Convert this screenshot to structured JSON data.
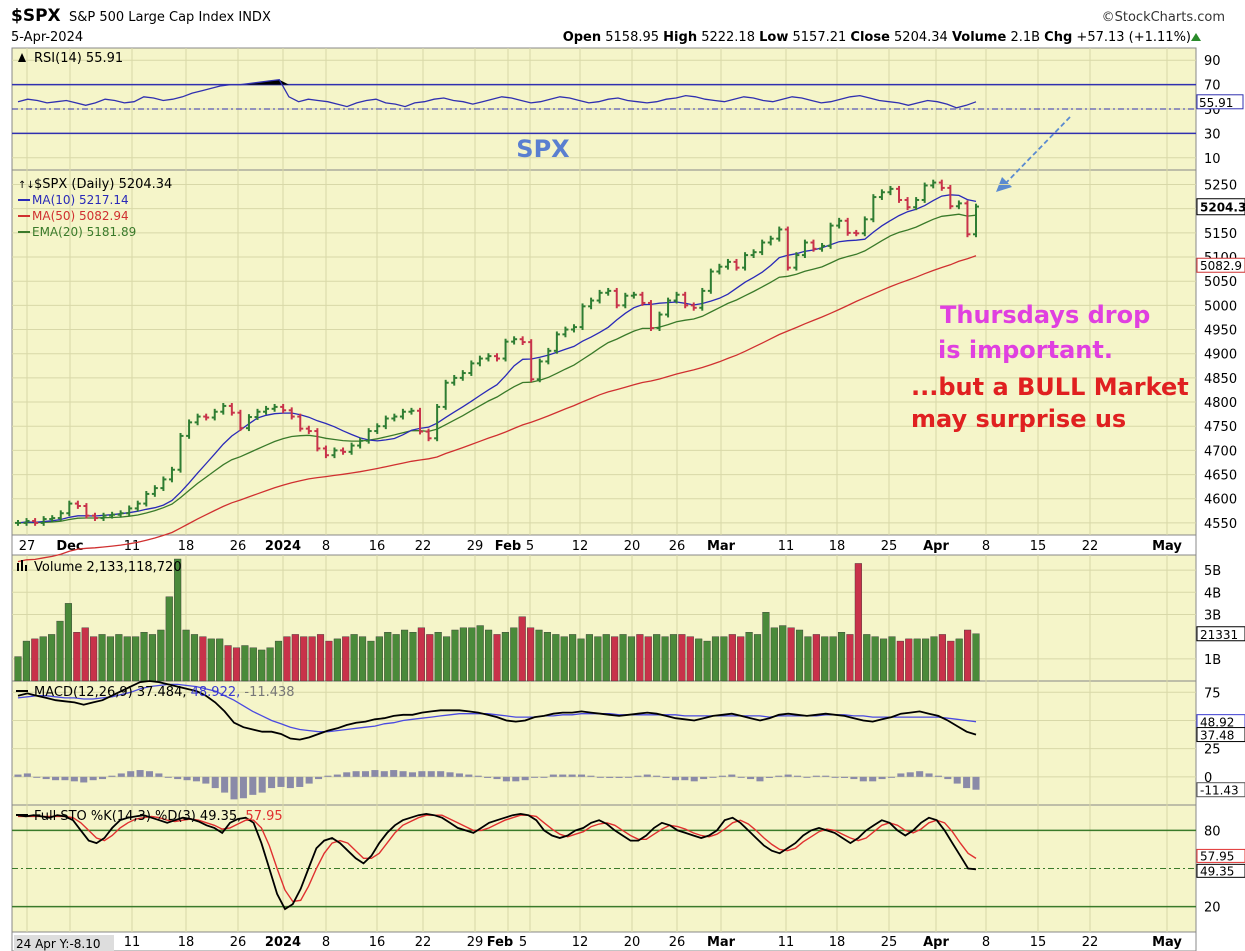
{
  "header": {
    "symbol": "$SPX",
    "name": "S&P 500 Large Cap Index",
    "exchange": "INDX",
    "date": "5-Apr-2024",
    "brand": "©StockCharts.com",
    "open_label": "Open",
    "open": "5158.95",
    "high_label": "High",
    "high": "5222.18",
    "low_label": "Low",
    "low": "5157.21",
    "close_label": "Close",
    "close": "5204.34",
    "volume_label": "Volume",
    "volume": "2.1B",
    "chg_label": "Chg",
    "chg": "+57.13 (+1.11%)"
  },
  "colors": {
    "panel_bg": "#f5f5c9",
    "grid": "#d8d8a8",
    "up": "#2e7d32",
    "down": "#c8324a",
    "ma10": "#2a2ab8",
    "ma50": "#d03030",
    "ema20": "#3a7a2a",
    "pink_note": "#e040e0",
    "red_note": "#e02020",
    "spx_note": "#5a7fd0"
  },
  "annotations": {
    "spx": "SPX",
    "note1_line1": "Thursdays drop",
    "note1_line2": "is important.",
    "note2_line1": "...but a BULL Market",
    "note2_line2": "may surprise us"
  },
  "x_axis": {
    "labels": [
      "27",
      "Dec",
      "11",
      "18",
      "26",
      "2024",
      "8",
      "16",
      "22",
      "29",
      "Feb",
      "5",
      "12",
      "20",
      "26",
      "Mar",
      "11",
      "18",
      "25",
      "Apr",
      "8",
      "15",
      "22",
      "May"
    ],
    "bottom_labels": [
      "11",
      "18",
      "26",
      "2024",
      "8",
      "16",
      "22",
      "29",
      "Feb",
      "5",
      "12",
      "20",
      "26",
      "Mar",
      "11",
      "18",
      "25",
      "Apr",
      "8",
      "15",
      "22",
      "May"
    ],
    "bottom_note": "24 Apr Y:-8.10"
  },
  "chart_data": [
    {
      "type": "line",
      "panel": "RSI",
      "title": "RSI(14) 55.91",
      "y_ticks": [
        90,
        70,
        50,
        30,
        10
      ],
      "ylim": [
        0,
        100
      ],
      "levels": [
        70,
        50,
        30
      ],
      "last_value": "55.91",
      "values": [
        56,
        58,
        57,
        55,
        56,
        57,
        55,
        53,
        55,
        58,
        57,
        55,
        56,
        60,
        59,
        57,
        58,
        60,
        63,
        65,
        67,
        69,
        70,
        70,
        71,
        72,
        73,
        74,
        60,
        56,
        58,
        57,
        56,
        54,
        52,
        55,
        57,
        58,
        55,
        54,
        52,
        55,
        56,
        58,
        59,
        57,
        56,
        54,
        56,
        58,
        60,
        59,
        57,
        55,
        56,
        58,
        60,
        59,
        57,
        55,
        56,
        58,
        59,
        57,
        56,
        55,
        56,
        58,
        59,
        61,
        60,
        58,
        57,
        56,
        58,
        60,
        59,
        57,
        56,
        58,
        60,
        59,
        57,
        55,
        56,
        58,
        60,
        61,
        59,
        57,
        56,
        55,
        53,
        55,
        57,
        56,
        54,
        51,
        53,
        55.91
      ]
    },
    {
      "type": "bar",
      "panel": "Price",
      "series_labels": [
        "$SPX (Daily) 5204.34",
        "MA(10) 5217.14",
        "MA(50) 5082.94",
        "EMA(20) 5181.89"
      ],
      "y_ticks": [
        5250,
        5200,
        5150,
        5100,
        5050,
        5000,
        4950,
        4900,
        4850,
        4800,
        4750,
        4700,
        4650,
        4600,
        4550
      ],
      "ylim": [
        4525,
        5280
      ],
      "right_values": [
        "5204.3",
        "5082.9"
      ],
      "first_date": "2023-11-27",
      "last_date": "2024-04-05",
      "close": [
        4550,
        4554,
        4550,
        4558,
        4560,
        4570,
        4590,
        4585,
        4565,
        4560,
        4565,
        4567,
        4570,
        4580,
        4590,
        4610,
        4622,
        4640,
        4660,
        4730,
        4758,
        4770,
        4768,
        4780,
        4792,
        4778,
        4746,
        4769,
        4780,
        4786,
        4790,
        4783,
        4770,
        4745,
        4740,
        4704,
        4690,
        4700,
        4697,
        4710,
        4720,
        4740,
        4750,
        4766,
        4770,
        4780,
        4782,
        4739,
        4725,
        4790,
        4840,
        4850,
        4860,
        4880,
        4890,
        4895,
        4890,
        4925,
        4930,
        4924,
        4847,
        4884,
        4906,
        4940,
        4950,
        4955,
        4998,
        5010,
        5026,
        5030,
        5000,
        5020,
        5022,
        5005,
        4953,
        4981,
        5010,
        5022,
        5000,
        4995,
        5030,
        5070,
        5080,
        5090,
        5078,
        5104,
        5110,
        5130,
        5138,
        5157,
        5078,
        5104,
        5130,
        5117,
        5123,
        5165,
        5175,
        5150,
        5149,
        5178,
        5224,
        5234,
        5241,
        5218,
        5203,
        5218,
        5248,
        5254,
        5243,
        5205,
        5211,
        5147,
        5204.34
      ]
    },
    {
      "type": "bar",
      "panel": "Volume",
      "title": "Volume 2,133,118,720",
      "y_ticks": [
        "5B",
        "4B",
        "3B",
        "1B"
      ],
      "ylim": [
        0,
        5.5
      ],
      "right_value": "21331",
      "values_billions": [
        1.1,
        1.8,
        1.9,
        2.0,
        2.1,
        2.7,
        3.5,
        2.2,
        2.4,
        2.0,
        2.1,
        2.0,
        2.1,
        2.0,
        2.0,
        2.2,
        2.1,
        2.3,
        3.8,
        5.5,
        2.3,
        2.1,
        2.0,
        1.9,
        1.9,
        1.6,
        1.5,
        1.6,
        1.5,
        1.4,
        1.5,
        1.8,
        2.0,
        2.1,
        2.0,
        2.0,
        2.1,
        1.8,
        1.9,
        2.0,
        2.1,
        2.0,
        1.8,
        2.0,
        2.2,
        2.1,
        2.3,
        2.2,
        2.4,
        2.1,
        2.2,
        2.0,
        2.3,
        2.4,
        2.4,
        2.5,
        2.3,
        2.1,
        2.2,
        2.4,
        2.9,
        2.4,
        2.3,
        2.2,
        2.1,
        2.0,
        2.1,
        1.9,
        2.1,
        2.0,
        2.1,
        2.0,
        2.1,
        2.0,
        2.1,
        2.0,
        2.1,
        2.0,
        2.1,
        2.1,
        2.0,
        1.9,
        1.8,
        2.0,
        2.0,
        2.1,
        2.0,
        2.2,
        2.1,
        3.1,
        2.4,
        2.5,
        2.4,
        2.3,
        2.0,
        2.1,
        2.0,
        2.0,
        2.2,
        2.1,
        5.3,
        2.1,
        2.0,
        1.9,
        2.0,
        1.8,
        1.9,
        1.9,
        1.9,
        2.0,
        2.1,
        1.8,
        1.9,
        2.3,
        2.13
      ],
      "colors_up": "#4a8a3a",
      "colors_down": "#c8324a"
    },
    {
      "type": "line",
      "panel": "MACD",
      "title": "MACD(12,26,9)",
      "macd_value": "37.484",
      "signal_value": "48.922",
      "hist_value": "-11.438",
      "y_ticks": [
        75,
        50,
        25,
        0
      ],
      "ylim": [
        -25,
        85
      ],
      "right_values": [
        "48.92",
        "37.48",
        "-11.43"
      ],
      "macd": [
        72,
        74,
        72,
        70,
        68,
        67,
        66,
        64,
        66,
        68,
        72,
        76,
        80,
        84,
        85,
        84,
        82,
        80,
        78,
        76,
        72,
        66,
        58,
        48,
        44,
        42,
        40,
        40,
        38,
        34,
        33,
        35,
        38,
        41,
        43,
        46,
        48,
        49,
        51,
        52,
        54,
        55,
        55,
        57,
        58,
        59,
        59,
        59,
        58,
        57,
        55,
        53,
        50,
        49,
        50,
        53,
        54,
        56,
        57,
        57,
        58,
        57,
        56,
        55,
        54,
        55,
        56,
        57,
        56,
        54,
        52,
        51,
        50,
        52,
        54,
        55,
        56,
        54,
        52,
        50,
        52,
        55,
        56,
        55,
        54,
        55,
        56,
        55,
        54,
        52,
        50,
        49,
        51,
        53,
        56,
        57,
        58,
        56,
        54,
        50,
        45,
        40,
        37.484
      ],
      "signal": [
        70,
        71,
        72,
        72,
        71,
        70,
        70,
        69,
        69,
        70,
        71,
        73,
        75,
        78,
        80,
        81,
        82,
        82,
        81,
        80,
        78,
        76,
        72,
        68,
        63,
        58,
        54,
        50,
        47,
        44,
        42,
        41,
        40,
        40,
        41,
        42,
        43,
        44,
        45,
        47,
        48,
        50,
        51,
        52,
        53,
        54,
        55,
        56,
        56,
        56,
        56,
        55,
        54,
        53,
        53,
        53,
        54,
        54,
        55,
        55,
        56,
        56,
        56,
        56,
        55,
        55,
        55,
        55,
        55,
        55,
        55,
        54,
        54,
        54,
        54,
        54,
        54,
        54,
        54,
        54,
        53,
        54,
        54,
        54,
        54,
        54,
        55,
        55,
        55,
        54,
        54,
        53,
        53,
        53,
        53,
        53,
        53,
        53,
        53,
        52,
        51,
        50,
        48.922
      ]
    },
    {
      "type": "line",
      "panel": "Stochastic",
      "title": "Full STO %K(14,3) %D(3)",
      "k_value": "49.35",
      "d_value": "57.95",
      "y_ticks": [
        80,
        20
      ],
      "ylim": [
        0,
        100
      ],
      "levels": [
        80,
        50,
        20
      ],
      "right_values": [
        "57.95",
        "49.35"
      ],
      "k": [
        92,
        91,
        92,
        91,
        90,
        92,
        91,
        88,
        80,
        72,
        70,
        74,
        82,
        88,
        90,
        91,
        92,
        90,
        88,
        86,
        88,
        90,
        89,
        87,
        84,
        82,
        78,
        86,
        89,
        90,
        86,
        70,
        50,
        30,
        18,
        22,
        34,
        50,
        66,
        72,
        74,
        70,
        64,
        58,
        54,
        60,
        70,
        78,
        84,
        88,
        90,
        92,
        93,
        92,
        90,
        86,
        82,
        80,
        78,
        82,
        86,
        88,
        90,
        92,
        93,
        92,
        88,
        80,
        76,
        74,
        76,
        80,
        82,
        86,
        88,
        85,
        80,
        76,
        72,
        72,
        76,
        82,
        86,
        84,
        80,
        78,
        76,
        74,
        76,
        80,
        88,
        90,
        86,
        80,
        74,
        68,
        64,
        62,
        66,
        70,
        76,
        80,
        82,
        80,
        78,
        74,
        70,
        74,
        80,
        84,
        88,
        86,
        80,
        76,
        80,
        86,
        90,
        88,
        80,
        70,
        60,
        50,
        49.35
      ],
      "d": [
        91,
        91,
        91,
        91,
        91,
        91,
        91,
        90,
        86,
        80,
        74,
        72,
        76,
        82,
        86,
        89,
        90,
        91,
        90,
        88,
        87,
        88,
        89,
        88,
        86,
        84,
        81,
        82,
        85,
        88,
        88,
        82,
        68,
        50,
        33,
        24,
        25,
        36,
        50,
        62,
        70,
        72,
        70,
        64,
        58,
        58,
        62,
        70,
        78,
        84,
        87,
        90,
        92,
        92,
        92,
        89,
        86,
        83,
        80,
        80,
        82,
        85,
        88,
        90,
        92,
        92,
        91,
        86,
        81,
        77,
        75,
        77,
        79,
        83,
        85,
        86,
        84,
        80,
        76,
        73,
        73,
        77,
        81,
        84,
        83,
        81,
        78,
        76,
        75,
        77,
        81,
        86,
        88,
        85,
        80,
        74,
        69,
        65,
        64,
        66,
        71,
        75,
        79,
        81,
        80,
        77,
        74,
        72,
        74,
        79,
        84,
        86,
        84,
        80,
        78,
        81,
        86,
        88,
        86,
        79,
        70,
        62,
        57.95
      ]
    }
  ]
}
